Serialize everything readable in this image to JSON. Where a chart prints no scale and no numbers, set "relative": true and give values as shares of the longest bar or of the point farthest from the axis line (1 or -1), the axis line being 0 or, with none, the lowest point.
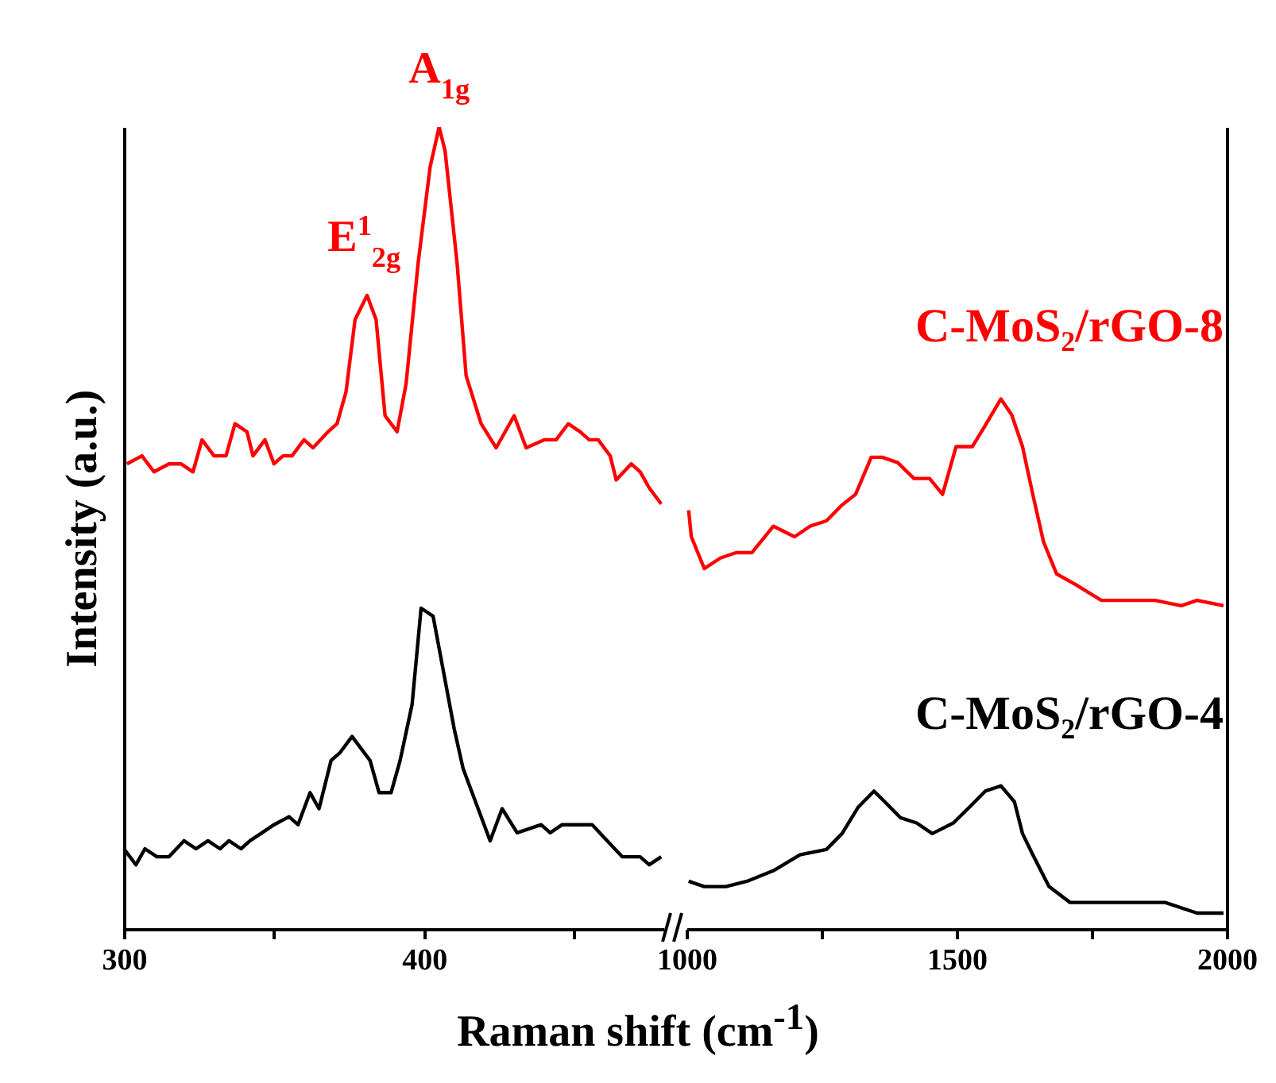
{
  "chart_data": [
    {
      "type": "line",
      "relative": true,
      "ylabel": "Intensity (a.u.)",
      "xlabel": "Raman shift (cm$^{-1}$)",
      "xlim": [
        300,
        480
      ],
      "xticks": [
        300,
        {
          "value": 350,
          "label": null
        },
        400,
        {
          "value": 450,
          "label": null
        }
      ],
      "annotations": [
        {
          "text": "E$^{1}$$_{2g}$",
          "x": 380,
          "y": 0.79
        },
        {
          "text": "A$_{1g}$",
          "x": 405,
          "y": 1.0
        }
      ],
      "series": [
        {
          "color": "#ff0000",
          "x": [
            301,
            306,
            310,
            315,
            319,
            323,
            326,
            330,
            334,
            337,
            341,
            343,
            347,
            350,
            353,
            356,
            360,
            363,
            368,
            371,
            374,
            377,
            381,
            384,
            387,
            391,
            394,
            398,
            402,
            405,
            407,
            411,
            414,
            419,
            424,
            430,
            434,
            440,
            444,
            448,
            452,
            455,
            458,
            462,
            464,
            469,
            472,
            475,
            479
          ],
          "values": [
            0.58,
            0.59,
            0.57,
            0.58,
            0.58,
            0.57,
            0.61,
            0.59,
            0.59,
            0.63,
            0.62,
            0.59,
            0.61,
            0.58,
            0.59,
            0.59,
            0.61,
            0.6,
            0.62,
            0.63,
            0.67,
            0.76,
            0.79,
            0.76,
            0.64,
            0.62,
            0.68,
            0.83,
            0.95,
            1.0,
            0.97,
            0.83,
            0.69,
            0.63,
            0.6,
            0.64,
            0.6,
            0.61,
            0.61,
            0.63,
            0.62,
            0.61,
            0.61,
            0.59,
            0.56,
            0.58,
            0.57,
            0.55,
            0.53
          ]
        },
        {
          "color": "#000000",
          "x": [
            300,
            304,
            307,
            311,
            315,
            320,
            324,
            328,
            332,
            335,
            339,
            342,
            346,
            350,
            355,
            358,
            362,
            365,
            369,
            372,
            376,
            382,
            385,
            389,
            392,
            396,
            399,
            403,
            406,
            410,
            413,
            417,
            422,
            426,
            431,
            439,
            442,
            446,
            450,
            456,
            461,
            466,
            472,
            475,
            479
          ],
          "values": [
            0.1,
            0.08,
            0.1,
            0.09,
            0.09,
            0.11,
            0.1,
            0.11,
            0.1,
            0.11,
            0.1,
            0.11,
            0.12,
            0.13,
            0.14,
            0.13,
            0.17,
            0.15,
            0.21,
            0.22,
            0.24,
            0.21,
            0.17,
            0.17,
            0.21,
            0.28,
            0.4,
            0.39,
            0.33,
            0.25,
            0.2,
            0.16,
            0.11,
            0.15,
            0.12,
            0.13,
            0.12,
            0.13,
            0.13,
            0.13,
            0.11,
            0.09,
            0.09,
            0.08,
            0.09
          ]
        }
      ]
    },
    {
      "type": "line",
      "relative": true,
      "xlim": [
        1000,
        2000
      ],
      "xticks": [
        1000,
        {
          "value": 1250,
          "label": null
        },
        1500,
        {
          "value": 1750,
          "label": null
        },
        2000
      ],
      "series": [
        {
          "name": "C-MoS₂/rGO-8",
          "color": "#ff0000",
          "x": [
            1004,
            1009,
            1033,
            1063,
            1092,
            1121,
            1161,
            1200,
            1229,
            1259,
            1288,
            1313,
            1342,
            1362,
            1391,
            1421,
            1450,
            1474,
            1499,
            1529,
            1553,
            1582,
            1602,
            1622,
            1641,
            1661,
            1685,
            1720,
            1768,
            1818,
            1867,
            1916,
            1945,
            1994
          ],
          "values": [
            0.79,
            0.74,
            0.68,
            0.7,
            0.71,
            0.71,
            0.76,
            0.74,
            0.76,
            0.77,
            0.8,
            0.82,
            0.89,
            0.89,
            0.88,
            0.85,
            0.85,
            0.82,
            0.91,
            0.91,
            0.95,
            1.0,
            0.97,
            0.91,
            0.82,
            0.73,
            0.67,
            0.65,
            0.62,
            0.62,
            0.62,
            0.61,
            0.62,
            0.61
          ]
        },
        {
          "name": "C-MoS₂/rGO-4",
          "color": "#000000",
          "x": [
            1004,
            1033,
            1073,
            1112,
            1161,
            1210,
            1259,
            1288,
            1318,
            1347,
            1367,
            1396,
            1426,
            1455,
            1494,
            1524,
            1553,
            1582,
            1607,
            1622,
            1641,
            1671,
            1710,
            1769,
            1827,
            1886,
            1945,
            1994
          ],
          "values": [
            0.09,
            0.08,
            0.08,
            0.09,
            0.11,
            0.14,
            0.15,
            0.18,
            0.23,
            0.26,
            0.24,
            0.21,
            0.2,
            0.18,
            0.2,
            0.23,
            0.26,
            0.27,
            0.24,
            0.18,
            0.14,
            0.08,
            0.05,
            0.05,
            0.05,
            0.05,
            0.03,
            0.03
          ]
        }
      ]
    }
  ]
}
